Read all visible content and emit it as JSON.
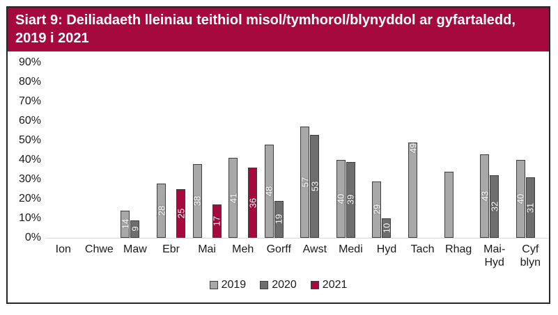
{
  "figure": {
    "title": "Siart 9: Deiliadaeth lleiniau teithiol misol/tymhorol/blynyddol ar gyfartaledd, 2019 i 2021"
  },
  "colors": {
    "banner_bg": "#a6093d",
    "banner_text": "#ffffff",
    "frame_border": "#262626",
    "axis_line": "#d9d9d9",
    "tick_text": "#1a1a1a",
    "bar_border": "#3d3d3d",
    "bar_label_text": "#ffffff"
  },
  "chart_data": {
    "type": "bar",
    "title": "Siart 9: Deiliadaeth lleiniau teithiol misol/tymhorol/blynyddol ar gyfartaledd, 2019 i 2021",
    "categories": [
      "Ion",
      "Chwe",
      "Maw",
      "Ebr",
      "Mai",
      "Meh",
      "Gorff",
      "Awst",
      "Medi",
      "Hyd",
      "Tach",
      "Rhag",
      "Mai-Hyd",
      "Cyf blyn"
    ],
    "category_display": [
      "Ion",
      "Chwe",
      "Maw",
      "Ebr",
      "Mai",
      "Meh",
      "Gorff",
      "Awst",
      "Medi",
      "Hyd",
      "Tach",
      "Rhag",
      "Mai-\nHyd",
      "Cyf\nblyn"
    ],
    "series": [
      {
        "name": "2019",
        "color": "#a8a8a8",
        "values": [
          null,
          null,
          14,
          28,
          38,
          41,
          48,
          57,
          40,
          29,
          49,
          34,
          43,
          40
        ]
      },
      {
        "name": "2020",
        "color": "#6e6e6e",
        "values": [
          null,
          null,
          9,
          null,
          null,
          null,
          19,
          53,
          39,
          10,
          null,
          null,
          32,
          31
        ]
      },
      {
        "name": "2021",
        "color": "#a6093d",
        "values": [
          null,
          null,
          null,
          25,
          17,
          36,
          null,
          null,
          null,
          null,
          null,
          null,
          null,
          null
        ]
      }
    ],
    "ylim": [
      0,
      90
    ],
    "yticks": [
      "90%",
      "80%",
      "70%",
      "60%",
      "50%",
      "40%",
      "30%",
      "20%",
      "10%",
      "0%"
    ],
    "grid": false,
    "legend_position": "bottom",
    "value_labels": "inside-center, rotated 90°, white",
    "label_overrides": {
      "Tach": {
        "2019": "top"
      },
      "Rhag": {
        "2019": "hidden"
      }
    }
  }
}
